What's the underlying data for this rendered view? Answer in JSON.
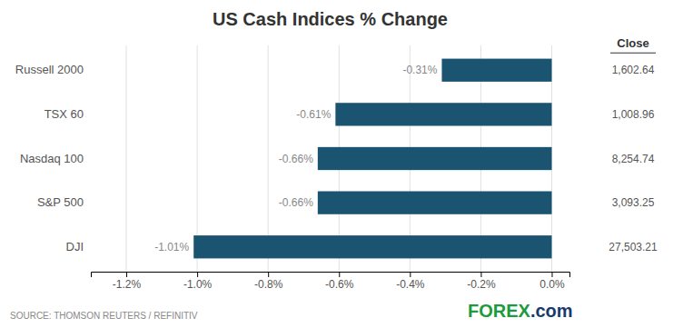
{
  "chart_data": {
    "type": "bar",
    "orientation": "horizontal",
    "title": "US Cash Indices % Change",
    "categories": [
      "Russell 2000",
      "TSX 60",
      "Nasdaq 100",
      "S&P 500",
      "DJI"
    ],
    "values": [
      -0.31,
      -0.61,
      -0.66,
      -0.66,
      -1.01
    ],
    "value_labels": [
      "-0.31%",
      "-0.61%",
      "-0.66%",
      "-0.66%",
      "-1.01%"
    ],
    "data_labels": true,
    "color": "#1a5470",
    "xlim": [
      -1.3,
      0.05
    ],
    "xticks": [
      {
        "value": -1.2,
        "label": "-1.2%"
      },
      {
        "value": -1.0,
        "label": "-1.0%"
      },
      {
        "value": -0.8,
        "label": "-0.8%"
      },
      {
        "value": -0.6,
        "label": "-0.6%"
      },
      {
        "value": -0.4,
        "label": "-0.4%"
      },
      {
        "value": -0.2,
        "label": "-0.2%"
      },
      {
        "value": 0.0,
        "label": "0.0%"
      }
    ],
    "grid": true,
    "close_header": "Close",
    "close_values": [
      "1,602.64",
      "1,008.96",
      "8,254.74",
      "3,093.25",
      "27,503.21"
    ],
    "source": "SOURCE: THOMSON REUTERS / REFINITIV",
    "annotations": [
      {
        "text": "FOREX",
        "color": "#1a9b3c"
      },
      {
        "text": ".com",
        "color": "#1a3a6e"
      }
    ]
  }
}
